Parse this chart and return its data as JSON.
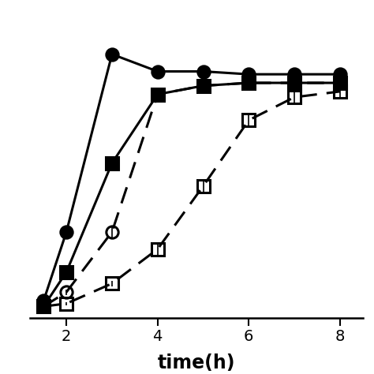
{
  "xlabel": "time(h)",
  "series": [
    {
      "name": "filled_circle_solid",
      "x": [
        1.5,
        2,
        3,
        4,
        5,
        6,
        7,
        8
      ],
      "y": [
        0.04,
        0.28,
        0.9,
        0.84,
        0.84,
        0.83,
        0.83,
        0.83
      ],
      "yerr": [
        0.01,
        0.02,
        0.02,
        0.02,
        0.02,
        0.02,
        0.02,
        0.02
      ],
      "linestyle": "solid",
      "marker": "o",
      "fillstyle": "full",
      "color": "black"
    },
    {
      "name": "filled_square_solid",
      "x": [
        1.5,
        2,
        3,
        4,
        5,
        6,
        7,
        8
      ],
      "y": [
        0.02,
        0.14,
        0.52,
        0.76,
        0.79,
        0.8,
        0.8,
        0.8
      ],
      "yerr": [
        0.005,
        0.01,
        0.02,
        0.02,
        0.02,
        0.02,
        0.02,
        0.02
      ],
      "linestyle": "solid",
      "marker": "s",
      "fillstyle": "full",
      "color": "black"
    },
    {
      "name": "open_circle_dashed",
      "x": [
        1.5,
        2,
        3,
        4,
        5,
        6,
        7,
        8
      ],
      "y": [
        0.02,
        0.07,
        0.28,
        0.76,
        0.79,
        0.8,
        0.8,
        0.8
      ],
      "yerr": [
        0.005,
        0.01,
        0.02,
        0.02,
        0.02,
        0.02,
        0.02,
        0.02
      ],
      "linestyle": "dashed",
      "marker": "o",
      "fillstyle": "none",
      "color": "black"
    },
    {
      "name": "open_square_dashed",
      "x": [
        1.5,
        2,
        3,
        4,
        5,
        6,
        7,
        8
      ],
      "y": [
        0.02,
        0.03,
        0.1,
        0.22,
        0.44,
        0.67,
        0.75,
        0.77
      ],
      "yerr": [
        0.005,
        0.005,
        0.01,
        0.02,
        0.02,
        0.02,
        0.02,
        0.02
      ],
      "linestyle": "dashed",
      "marker": "s",
      "fillstyle": "none",
      "color": "black"
    }
  ],
  "xlim": [
    1.2,
    8.5
  ],
  "ylim": [
    -0.02,
    1.05
  ],
  "xticks": [
    2,
    4,
    6,
    8
  ],
  "xlabel_fontsize": 17,
  "tick_fontsize": 14,
  "linewidth": 2.2,
  "markersize": 11,
  "markeredgewidth": 2.2,
  "background_color": "#ffffff",
  "figsize": [
    4.74,
    4.74
  ],
  "dpi": 100
}
